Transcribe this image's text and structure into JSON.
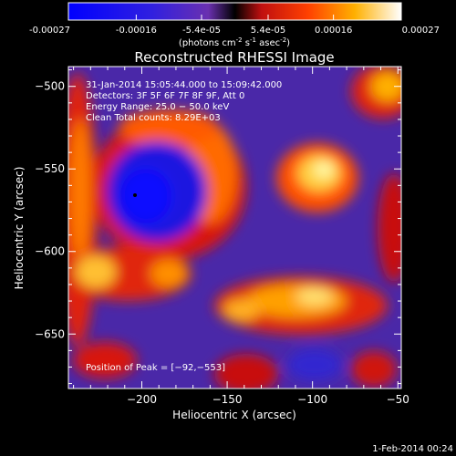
{
  "colorbar": {
    "tick_labels": [
      "-0.00027",
      "-0.00016",
      "-5.4e-05",
      "5.4e-05",
      "0.00016",
      "0.00027"
    ],
    "tick_values": [
      -0.00027,
      -0.00016,
      -5.4e-05,
      5.4e-05,
      0.00016,
      0.00027
    ],
    "range": [
      -0.00027,
      0.00027
    ],
    "units_parts": [
      "(photons cm",
      "-2",
      " s",
      "-1",
      " asec",
      "-2",
      ")"
    ]
  },
  "footer": {
    "timestamp": "1-Feb-2014 00:24"
  },
  "chart_data": {
    "type": "heatmap",
    "title": "Reconstructed RHESSI Image",
    "xlabel": "Heliocentric X (arcsec)",
    "ylabel": "Heliocentric Y (arcsec)",
    "xlim": [
      -243,
      -48
    ],
    "ylim": [
      -683,
      -488
    ],
    "x_ticks": [
      -200,
      -150,
      -100,
      -50
    ],
    "x_tick_labels": [
      "−200",
      "−150",
      "−100",
      "−50"
    ],
    "y_ticks": [
      -500,
      -550,
      -600,
      -650
    ],
    "y_tick_labels": [
      "−500",
      "−550",
      "−600",
      "−650"
    ],
    "annotations": [
      "31-Jan-2014 15:05:44.000 to 15:09:42.000",
      "Detectors: 3F 5F 6F 7F 8F 9F, Att 0",
      "Energy Range: 25.0 − 50.0 keV",
      "Clean     Total counts: 8.29E+03"
    ],
    "peak_label": "Position of Peak = [−92,−553]",
    "peak_position": [
      -92,
      -553
    ],
    "colors": {
      "low": "#1010ff",
      "mid_low": "#7b2ac8",
      "zero": "#000000",
      "mid_high": "#e01010",
      "high": "#ffa000",
      "max": "#ffffff"
    }
  }
}
